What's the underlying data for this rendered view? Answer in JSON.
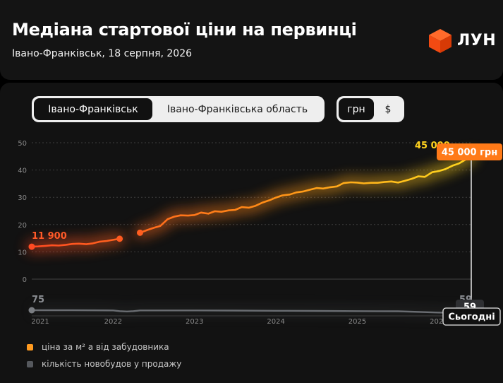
{
  "header": {
    "title": "Медіана стартової ціни на первинці",
    "subtitle": "Івано-Франківськ, 18 серпня, 2026",
    "brand": "ЛУН",
    "logo_icon": "orange-cube-logo"
  },
  "tabs": {
    "city": [
      {
        "label": "Івано-Франківськ",
        "active": true
      },
      {
        "label": "Івано-Франківська область",
        "active": false
      }
    ],
    "currency": [
      {
        "label": "грн",
        "active": true
      },
      {
        "label": "$",
        "active": false
      }
    ]
  },
  "chart_data": {
    "type": "line",
    "ylim": [
      0,
      50
    ],
    "yticks": [
      "0",
      "10",
      "20",
      "30",
      "40",
      "50"
    ],
    "xticks": [
      "2021",
      "2022",
      "2023",
      "2024",
      "2025",
      "2026"
    ],
    "grid": true,
    "series": [
      {
        "name": "ціна за м² а від забудовника",
        "unit": "тис. грн",
        "colors": [
          "#ff4a22",
          "#ff8a17",
          "#ffd21e"
        ],
        "segments": [
          {
            "x": [
              2021.0,
              2021.08,
              2021.17,
              2021.25,
              2021.33,
              2021.42,
              2021.5,
              2021.58,
              2021.67,
              2021.75,
              2021.83,
              2021.92,
              2022.0,
              2022.08
            ],
            "y": [
              11.9,
              12.0,
              12.2,
              12.4,
              12.3,
              12.6,
              12.9,
              13.0,
              12.8,
              13.1,
              13.7,
              14.0,
              14.4,
              14.8
            ]
          },
          {
            "x": [
              2022.33,
              2022.42,
              2022.5,
              2022.58,
              2022.67,
              2022.75,
              2022.83,
              2022.92,
              2023.0,
              2023.08,
              2023.17,
              2023.25,
              2023.33,
              2023.42,
              2023.5,
              2023.58,
              2023.67,
              2023.75,
              2023.83,
              2023.92,
              2024.0,
              2024.08,
              2024.17,
              2024.25,
              2024.33,
              2024.42,
              2024.5,
              2024.58,
              2024.67,
              2024.75,
              2024.83,
              2024.92,
              2025.0,
              2025.08,
              2025.17,
              2025.25,
              2025.33,
              2025.42,
              2025.5,
              2025.58,
              2025.67,
              2025.75,
              2025.83,
              2025.92,
              2026.0,
              2026.08,
              2026.17,
              2026.25,
              2026.33,
              2026.4
            ],
            "y": [
              17.0,
              18.0,
              18.8,
              19.5,
              22.0,
              22.9,
              23.4,
              23.3,
              23.5,
              24.4,
              24.0,
              24.9,
              24.7,
              25.2,
              25.4,
              26.4,
              26.2,
              26.9,
              28.0,
              28.9,
              29.9,
              30.7,
              31.0,
              31.8,
              32.1,
              32.8,
              33.4,
              33.2,
              33.7,
              34.0,
              35.2,
              35.5,
              35.4,
              35.1,
              35.3,
              35.3,
              35.6,
              35.8,
              35.4,
              36.0,
              36.8,
              37.7,
              37.5,
              39.2,
              39.6,
              40.3,
              41.6,
              42.4,
              43.8,
              45.0
            ]
          }
        ]
      },
      {
        "name": "кількість новобудов у продажу",
        "color": "#6a6d72",
        "x": [
          2021.0,
          2021.5,
          2022.0,
          2022.08,
          2022.17,
          2022.25,
          2022.33,
          2022.5,
          2023.0,
          2023.5,
          2024.0,
          2024.5,
          2025.0,
          2025.5,
          2026.0,
          2026.4
        ],
        "y": [
          75,
          75,
          74,
          70,
          68,
          70,
          74,
          74,
          74,
          73,
          72,
          71,
          70,
          69,
          62,
          59
        ]
      }
    ],
    "annotations": {
      "price_start": "11 900",
      "price_end": "45 000",
      "price_badge": "45 000 грн",
      "count_start": "75",
      "count_end": "59",
      "count_badge": "59",
      "today_label": "Сьогодні"
    }
  },
  "legend": [
    {
      "label": "ціна за м² а від забудовника",
      "color": "#ff9a1f"
    },
    {
      "label": "кількість новобудов у продажу",
      "color": "#55585d"
    }
  ]
}
